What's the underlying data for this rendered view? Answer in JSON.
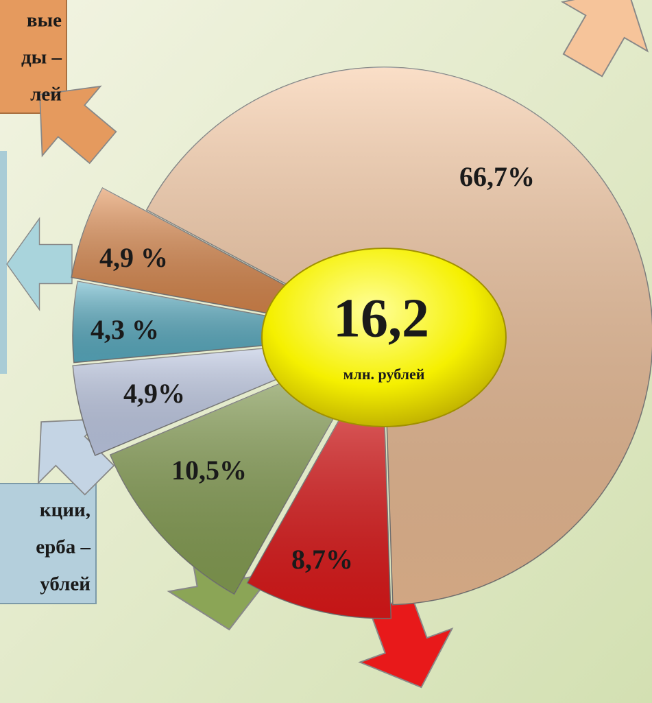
{
  "chart_data": {
    "type": "pie",
    "values": [
      66.7,
      8.7,
      10.5,
      4.9,
      4.3,
      4.9
    ],
    "value_labels": [
      "66,7%",
      "8,7%",
      "10,5%",
      "4,9%",
      "4,3 %",
      "4,9 %"
    ],
    "colors": [
      "#f6c49a",
      "#e8191a",
      "#8ba556",
      "#c8d3ef",
      "#5cb2c8",
      "#e0894a"
    ],
    "center_text": "16,2",
    "center_subtext": "млн. рублей",
    "annotations": [
      [
        "вые",
        "ды –",
        "лей"
      ],
      [
        "кции,",
        "ерба –",
        "ублей"
      ]
    ]
  }
}
